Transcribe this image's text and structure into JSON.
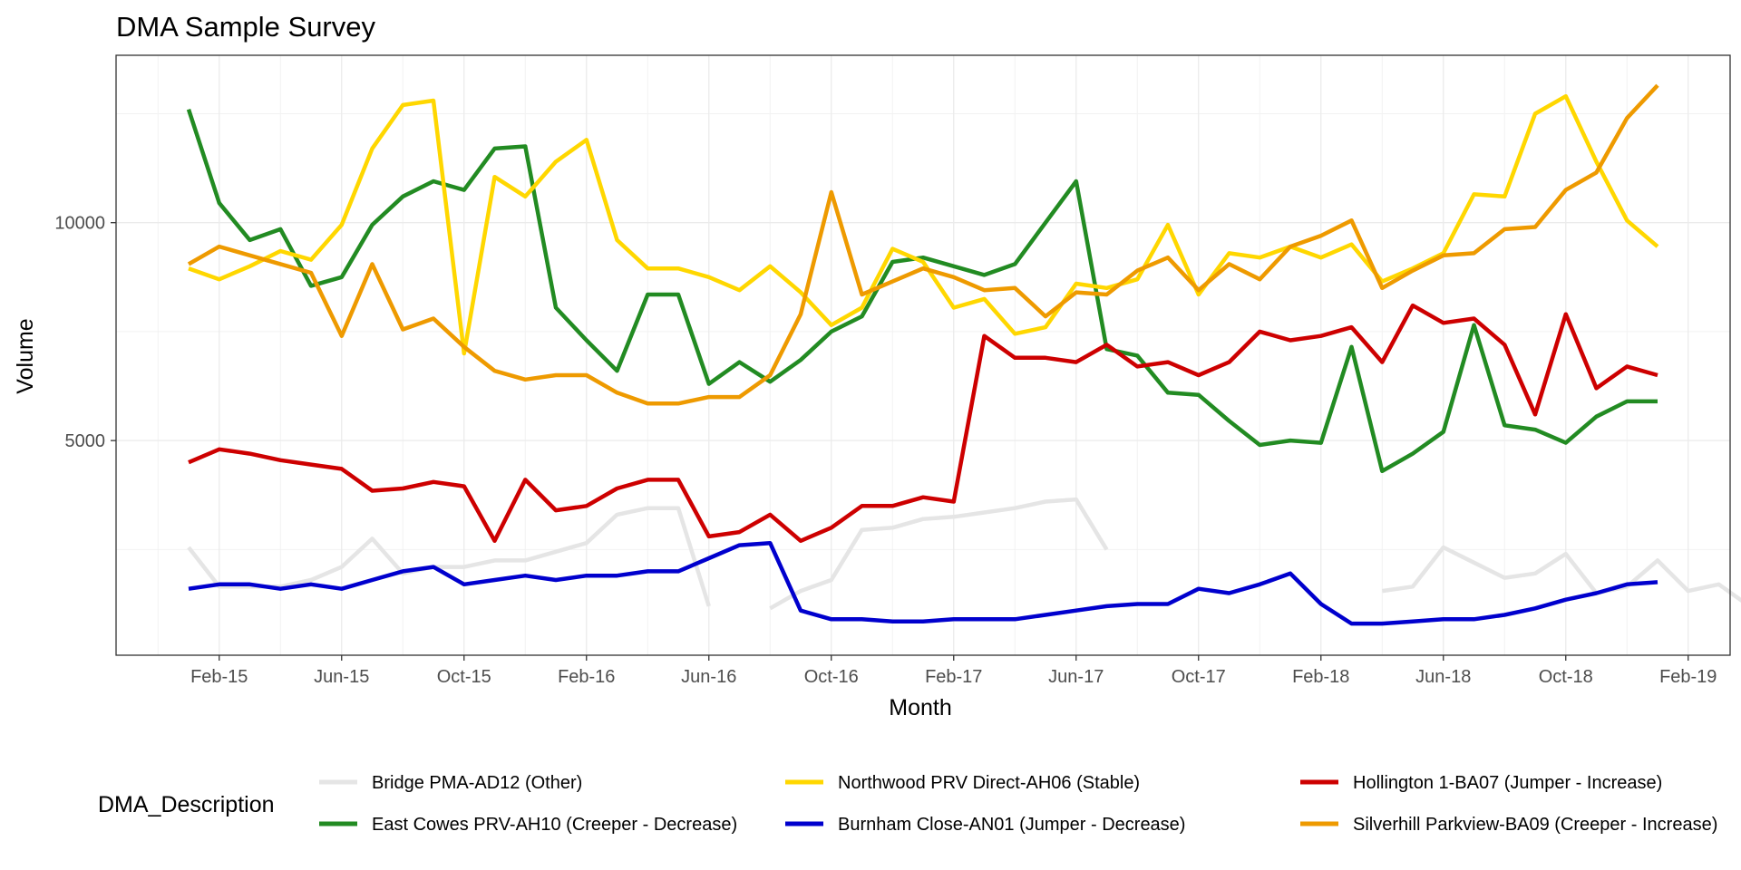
{
  "chart_data": {
    "type": "line",
    "title": "DMA Sample Survey",
    "xlabel": "Month",
    "ylabel": "Volume",
    "x_tick_labels": [
      "Feb-15",
      "Jun-15",
      "Oct-15",
      "Feb-16",
      "Jun-16",
      "Oct-16",
      "Feb-17",
      "Jun-17",
      "Oct-17",
      "Feb-18",
      "Jun-18",
      "Oct-18",
      "Feb-19"
    ],
    "y_ticks": [
      5000,
      10000
    ],
    "ylim": [
      1000,
      14000
    ],
    "grid": true,
    "legend_title": "DMA_Description",
    "legend_position": "bottom",
    "x_start": "Jan-15",
    "series": [
      {
        "name": "Bridge PMA-AD12 (Other)",
        "color": "#e5e5e5",
        "values": [
          2550,
          1650,
          1650,
          1650,
          1800,
          2100,
          2750,
          1950,
          2100,
          2100,
          2250,
          2250,
          2450,
          2650,
          3300,
          3450,
          3450,
          1200,
          null,
          1150,
          1550,
          1800,
          2950,
          3000,
          3200,
          3250,
          3350,
          3450,
          3600,
          3650,
          2500,
          null,
          null,
          null,
          null,
          null,
          null,
          null,
          null,
          1550,
          1650,
          2550,
          2200,
          1850,
          1950,
          2400,
          1500,
          1650,
          2250,
          1550,
          1700,
          1200,
          1150
        ]
      },
      {
        "name": "East Cowes PRV-AH10 (Creeper - Decrease)",
        "color": "#228b22",
        "values": [
          12600,
          10450,
          9600,
          9850,
          8550,
          8750,
          9950,
          10600,
          10950,
          10750,
          11700,
          11750,
          8050,
          7300,
          6600,
          8350,
          8350,
          6300,
          6800,
          6350,
          6850,
          7500,
          7850,
          9100,
          9200,
          9000,
          8800,
          9050,
          10000,
          10950,
          7100,
          6950,
          6100,
          6050,
          5450,
          4900,
          5000,
          4950,
          7150,
          4300,
          4700,
          5200,
          7650,
          5350,
          5250,
          4950,
          5550,
          5900,
          5900
        ]
      },
      {
        "name": "Northwood PRV Direct-AH06 (Stable)",
        "color": "#ffd700",
        "values": [
          8950,
          8700,
          9000,
          9350,
          9150,
          9950,
          11700,
          12700,
          12800,
          7000,
          11050,
          10600,
          11400,
          11900,
          9600,
          8950,
          8950,
          8750,
          8450,
          9000,
          8400,
          7650,
          8050,
          9400,
          9100,
          8050,
          8250,
          7450,
          7600,
          8600,
          8500,
          8700,
          9950,
          8350,
          9300,
          9200,
          9450,
          9200,
          9500,
          8650,
          8950,
          9300,
          10650,
          10600,
          12500,
          12900,
          11400,
          10050,
          9450
        ]
      },
      {
        "name": "Burnham Close-AN01 (Jumper - Decrease)",
        "color": "#0000cd",
        "values": [
          1600,
          1700,
          1700,
          1600,
          1700,
          1600,
          1800,
          2000,
          2100,
          1700,
          1800,
          1900,
          1800,
          1900,
          1900,
          2000,
          2000,
          2300,
          2600,
          2650,
          1100,
          900,
          900,
          850,
          850,
          900,
          900,
          900,
          1000,
          1100,
          1200,
          1250,
          1250,
          1600,
          1500,
          1700,
          1950,
          1250,
          800,
          800,
          850,
          900,
          900,
          1000,
          1150,
          1350,
          1500,
          1700,
          1750
        ]
      },
      {
        "name": "Hollington 1-BA07 (Jumper - Increase)",
        "color": "#cd0000",
        "values": [
          4500,
          4800,
          4700,
          4550,
          4450,
          4350,
          3850,
          3900,
          4050,
          3950,
          2700,
          4100,
          3400,
          3500,
          3900,
          4100,
          4100,
          2800,
          2900,
          3300,
          2700,
          3000,
          3500,
          3500,
          3700,
          3600,
          7400,
          6900,
          6900,
          6800,
          7200,
          6700,
          6800,
          6500,
          6800,
          7500,
          7300,
          7400,
          7600,
          6800,
          8100,
          7700,
          7800,
          7200,
          5600,
          7900,
          6200,
          6700,
          6500
        ]
      },
      {
        "name": "Silverhill Parkview-BA09 (Creeper - Increase)",
        "color": "#ee9a00",
        "values": [
          9050,
          9450,
          9250,
          9050,
          8850,
          7400,
          9050,
          7550,
          7800,
          7150,
          6600,
          6400,
          6500,
          6500,
          6100,
          5850,
          5850,
          6000,
          6000,
          6500,
          7900,
          10700,
          8350,
          8650,
          8950,
          8750,
          8450,
          8500,
          7850,
          8400,
          8350,
          8900,
          9200,
          8450,
          9050,
          8700,
          9450,
          9700,
          10050,
          8500,
          8900,
          9250,
          9300,
          9850,
          9900,
          10750,
          11150,
          12400,
          13150
        ]
      }
    ]
  }
}
